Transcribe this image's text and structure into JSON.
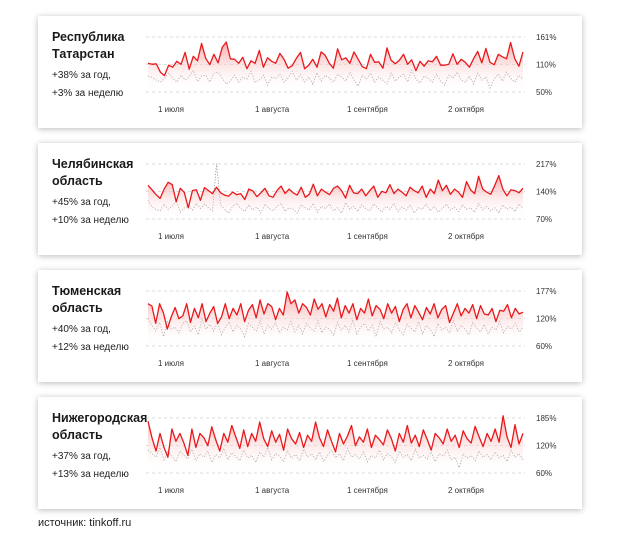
{
  "source": "источник: tinkoff.ru",
  "colors": {
    "line": "#e8191c",
    "fill_top": "#f6a3a3",
    "dotted": "#9a9a9a",
    "grid": "#d0d0d0"
  },
  "x_ticks": [
    "1 июля",
    "1 августа",
    "1 сентября",
    "2 октября"
  ],
  "chart_data": [
    {
      "type": "line",
      "title": "Республика Татарстан",
      "stat_year": "+38% за год,",
      "stat_week": "+3% за неделю",
      "y_ticks": [
        "161%",
        "110%",
        "50%"
      ],
      "ylim": [
        50,
        161
      ],
      "series": [
        {
          "values": [
            108,
            106,
            107,
            90,
            83,
            104,
            100,
            112,
            106,
            130,
            96,
            122,
            113,
            148,
            118,
            105,
            126,
            109,
            140,
            151,
            117,
            116,
            108,
            120,
            97,
            113,
            108,
            134,
            100,
            119,
            112,
            108,
            128,
            116,
            98,
            103,
            118,
            130,
            97,
            104,
            116,
            100,
            131,
            124,
            108,
            98,
            137,
            115,
            119,
            108,
            131,
            116,
            101,
            97,
            126,
            110,
            111,
            98,
            139,
            114,
            107,
            114,
            126,
            106,
            115,
            93,
            112,
            102,
            113,
            111,
            122,
            104,
            104,
            106,
            127,
            106,
            116,
            110,
            100,
            117,
            132,
            109,
            138,
            110,
            105,
            126,
            121,
            117,
            150,
            117,
            102,
            131
          ]
        },
        {
          "values": [
            82,
            80,
            74,
            70,
            77,
            88,
            78,
            70,
            84,
            74,
            80,
            94,
            71,
            82,
            84,
            70,
            88,
            90,
            78,
            66,
            72,
            84,
            70,
            80,
            76,
            92,
            70,
            74,
            84,
            64,
            80,
            77,
            86,
            70,
            78,
            92,
            74,
            85,
            70,
            80,
            66,
            89,
            72,
            84,
            78,
            70,
            86,
            80,
            72,
            90,
            74,
            62,
            84,
            76,
            88,
            70,
            80,
            74,
            66,
            88,
            72,
            80,
            86,
            70,
            94,
            76,
            68,
            82,
            78,
            70,
            86,
            72,
            64,
            84,
            78,
            90,
            74,
            70,
            82,
            66,
            88,
            74,
            80,
            58,
            76,
            86,
            72,
            90,
            78,
            70,
            84,
            76
          ]
        }
      ]
    },
    {
      "type": "line",
      "title": "Челябинская область",
      "stat_year": "+45% за год,",
      "stat_week": "+10% за неделю",
      "y_ticks": [
        "217%",
        "140%",
        "70%"
      ],
      "ylim": [
        70,
        217
      ],
      "series": [
        {
          "values": [
            160,
            148,
            135,
            125,
            150,
            168,
            162,
            116,
            152,
            141,
            100,
            146,
            148,
            120,
            154,
            146,
            138,
            155,
            140,
            134,
            131,
            142,
            135,
            138,
            122,
            150,
            145,
            130,
            140,
            152,
            132,
            128,
            146,
            158,
            138,
            150,
            140,
            134,
            155,
            128,
            136,
            163,
            132,
            150,
            142,
            135,
            152,
            158,
            146,
            126,
            160,
            140,
            138,
            150,
            132,
            146,
            158,
            128,
            144,
            140,
            162,
            138,
            150,
            142,
            132,
            155,
            146,
            140,
            158,
            128,
            150,
            138,
            174,
            146,
            160,
            136,
            150,
            142,
            128,
            170,
            148,
            138,
            184,
            150,
            142,
            136,
            160,
            186,
            150,
            132,
            148,
            146,
            140,
            152
          ]
        },
        {
          "values": [
            120,
            102,
            95,
            92,
            110,
            96,
            104,
            120,
            88,
            100,
            106,
            94,
            112,
            98,
            110,
            100,
            92,
            218,
            108,
            96,
            86,
            104,
            112,
            98,
            90,
            108,
            94,
            102,
            86,
            110,
            98,
            92,
            104,
            112,
            90,
            100,
            96,
            86,
            108,
            100,
            94,
            112,
            88,
            104,
            98,
            110,
            92,
            100,
            86,
            114,
            96,
            104,
            90,
            108,
            98,
            92,
            110,
            100,
            88,
            104,
            96,
            112,
            90,
            102,
            94,
            108,
            86,
            100,
            96,
            110,
            92,
            104,
            88,
            98,
            110,
            94,
            102,
            90,
            108,
            96,
            100,
            88,
            112,
            94,
            104,
            92,
            100,
            86,
            108,
            96,
            102,
            90,
            110,
            98
          ]
        }
      ]
    },
    {
      "type": "line",
      "title": "Тюменская область",
      "stat_year": "+40% за год,",
      "stat_week": "+12% за неделю",
      "y_ticks": [
        "177%",
        "120%",
        "60%"
      ],
      "ylim": [
        60,
        177
      ],
      "series": [
        {
          "values": [
            150,
            145,
            108,
            150,
            130,
            96,
            122,
            142,
            118,
            124,
            150,
            110,
            140,
            120,
            150,
            112,
            130,
            144,
            108,
            122,
            150,
            118,
            140,
            126,
            150,
            112,
            136,
            148,
            120,
            158,
            128,
            150,
            144,
            116,
            140,
            126,
            175,
            150,
            158,
            130,
            150,
            142,
            126,
            160,
            138,
            150,
            122,
            148,
            134,
            162,
            120,
            146,
            130,
            150,
            116,
            140,
            130,
            160,
            124,
            146,
            138,
            118,
            150,
            130,
            144,
            112,
            138,
            150,
            120,
            146,
            132,
            116,
            142,
            128,
            150,
            120,
            138,
            146,
            110,
            130,
            150,
            124,
            140,
            130,
            148,
            118,
            146,
            128,
            126,
            140,
            112,
            136,
            134,
            148,
            120,
            140,
            128,
            132
          ]
        },
        {
          "values": [
            118,
            104,
            92,
            110,
            80,
            112,
            96,
            100,
            88,
            108,
            114,
            90,
            102,
            84,
            118,
            96,
            106,
            92,
            110,
            84,
            100,
            112,
            90,
            104,
            96,
            80,
            108,
            100,
            92,
            114,
            86,
            104,
            96,
            110,
            88,
            100,
            94,
            112,
            90,
            104,
            86,
            108,
            98,
            92,
            114,
            88,
            100,
            96,
            82,
            110,
            94,
            104,
            90,
            116,
            86,
            100,
            108,
            92,
            104,
            80,
            112,
            96,
            100,
            88,
            110,
            94,
            84,
            106,
            98,
            90,
            112,
            86,
            104,
            96,
            80,
            108,
            94,
            100,
            88,
            114,
            92,
            104,
            96,
            84,
            110,
            98,
            90,
            106,
            86,
            100,
            94,
            112,
            88,
            102,
            96,
            108,
            90,
            100
          ]
        }
      ]
    },
    {
      "type": "line",
      "title": "Нижегородская область",
      "stat_year": "+37% за год,",
      "stat_week": "+13% за неделю",
      "y_ticks": [
        "185%",
        "120%",
        "60%"
      ],
      "ylim": [
        60,
        185
      ],
      "series": [
        {
          "values": [
            178,
            140,
            110,
            150,
            118,
            96,
            160,
            132,
            150,
            128,
            100,
            160,
            118,
            150,
            140,
            122,
            165,
            135,
            110,
            150,
            130,
            168,
            142,
            116,
            158,
            120,
            150,
            132,
            176,
            138,
            120,
            156,
            130,
            148,
            112,
            160,
            138,
            126,
            152,
            118,
            146,
            132,
            176,
            140,
            120,
            158,
            132,
            108,
            150,
            126,
            144,
            168,
            122,
            142,
            130,
            160,
            118,
            146,
            136,
            124,
            158,
            138,
            110,
            150,
            130,
            168,
            128,
            146,
            120,
            158,
            136,
            112,
            150,
            140,
            126,
            160,
            132,
            146,
            118,
            156,
            138,
            128,
            166,
            142,
            120,
            150,
            132,
            160,
            130,
            190,
            142,
            118,
            170,
            126,
            150
          ]
        },
        {
          "values": [
            112,
            104,
            96,
            118,
            90,
            108,
            98,
            86,
            110,
            100,
            92,
            114,
            88,
            104,
            96,
            110,
            84,
            102,
            94,
            116,
            90,
            106,
            98,
            88,
            112,
            94,
            100,
            84,
            108,
            96,
            118,
            90,
            104,
            98,
            86,
            110,
            94,
            102,
            88,
            114,
            96,
            104,
            90,
            108,
            86,
            100,
            112,
            94,
            104,
            88,
            116,
            96,
            102,
            92,
            108,
            86,
            100,
            94,
            112,
            90,
            104,
            98,
            84,
            110,
            96,
            102,
            88,
            114,
            94,
            100,
            92,
            108,
            86,
            104,
            98,
            112,
            90,
            96,
            72,
            104,
            94,
            100,
            88,
            110,
            96,
            102,
            90,
            108,
            94,
            100,
            86,
            112,
            96,
            104,
            90
          ]
        }
      ]
    }
  ]
}
